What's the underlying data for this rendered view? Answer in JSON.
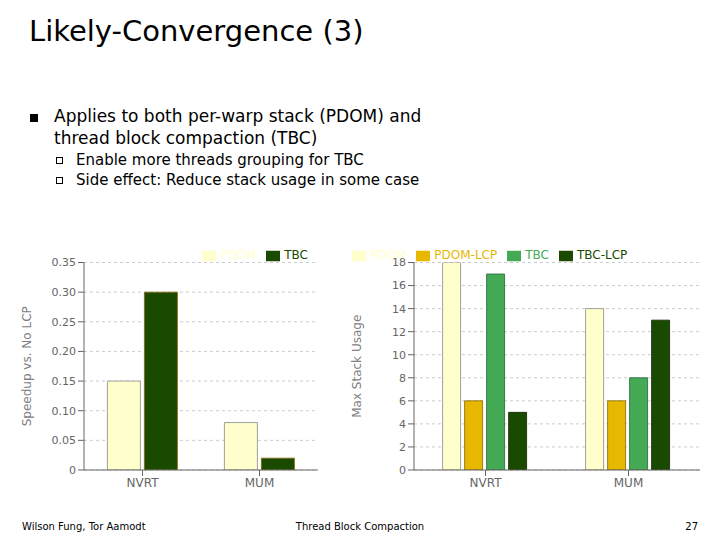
{
  "title": "Likely-Convergence (3)",
  "annotations": [
    "Applies to both per-warp stack (PDOM) and",
    "thread block compaction (TBC)",
    "Enable more threads grouping for TBC",
    "Side effect: Reduce stack usage in some case",
    "Wilson Fung, Tor Aamodt",
    "Thread Block Compaction",
    "27"
  ],
  "chart_data": [
    {
      "type": "bar",
      "categories": [
        "NVRT",
        "MUM"
      ],
      "series": [
        {
          "name": "PDOM",
          "color": "#ffffcc",
          "values": [
            0.15,
            0.08
          ]
        },
        {
          "name": "TBC",
          "color": "#1a4a00",
          "values": [
            0.3,
            0.02
          ]
        }
      ],
      "ylabel": "Speedup vs. No LCP",
      "ylim": [
        0,
        0.35
      ],
      "yticks": [
        0,
        0.05,
        {
          "value": 0.1,
          "label": "0.10"
        },
        0.15,
        {
          "value": 0.2,
          "label": "0.20"
        },
        0.25,
        {
          "value": 0.3,
          "label": "0.30"
        },
        0.35
      ],
      "grid": true,
      "legend": "upper right"
    },
    {
      "type": "bar",
      "categories": [
        "NVRT",
        "MUM"
      ],
      "series": [
        {
          "name": "PDOM",
          "color": "#ffffcc",
          "values": [
            18,
            14
          ]
        },
        {
          "name": "PDOM-LCP",
          "color": "#e6b800",
          "values": [
            6,
            6
          ]
        },
        {
          "name": "TBC",
          "color": "#44aa55",
          "values": [
            17,
            8
          ]
        },
        {
          "name": "TBC-LCP",
          "color": "#1a4a00",
          "values": [
            5,
            13
          ]
        }
      ],
      "ylabel": "Max Stack Usage",
      "ylim": [
        0,
        18
      ],
      "yticks": [
        0,
        2,
        4,
        6,
        8,
        10,
        12,
        14,
        16,
        18
      ],
      "grid": true,
      "legend": "upper left"
    }
  ]
}
